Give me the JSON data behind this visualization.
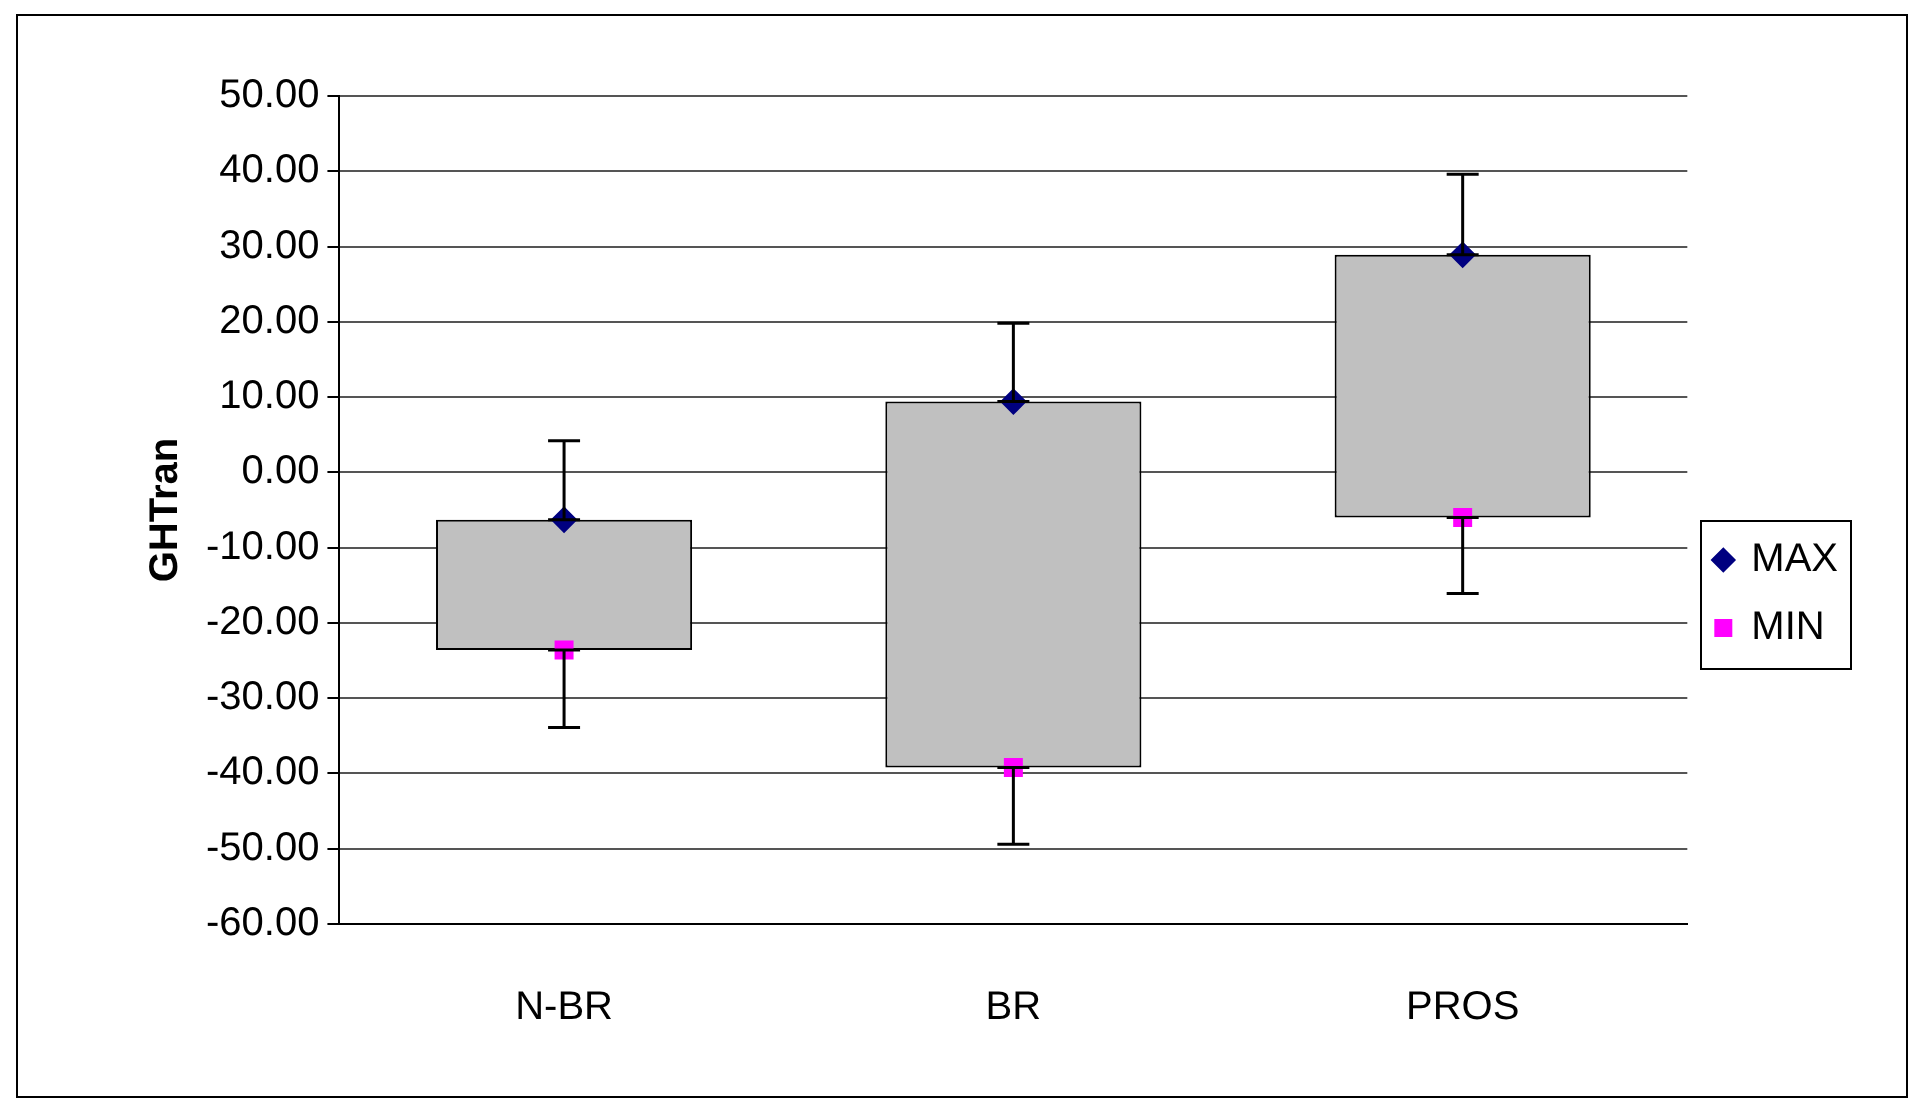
{
  "chart_data": {
    "type": "bar",
    "ylabel": "GHTran",
    "categories": [
      "N-BR",
      "BR",
      "PROS"
    ],
    "series": [
      {
        "color": "#c0c0c0",
        "base": [
          -23.6,
          -39.2,
          -6.0
        ],
        "values": [
          17.3,
          48.6,
          34.9
        ]
      },
      {
        "type": "scatter",
        "name": "MAX",
        "color": "#000080",
        "marker": "diamond",
        "x": [
          "N-BR",
          "BR",
          "PROS"
        ],
        "values": [
          -6.3,
          9.4,
          28.9
        ],
        "errors": [
          [
            -6.3,
            4.2
          ],
          [
            9.4,
            19.8
          ],
          [
            28.9,
            39.6
          ]
        ]
      },
      {
        "type": "scatter",
        "name": "MIN",
        "color": "#ff00ff",
        "marker": "square",
        "x": [
          "N-BR",
          "BR",
          "PROS"
        ],
        "values": [
          -23.6,
          -39.2,
          -6.0
        ],
        "errors": [
          [
            -33.9,
            -23.6
          ],
          [
            -49.4,
            -39.2
          ],
          [
            -16.1,
            -6.0
          ]
        ]
      }
    ],
    "ylim": [
      -60,
      50
    ],
    "yticks": [
      {
        "value": -60,
        "label": "-60.00"
      },
      {
        "value": -50,
        "label": "-50.00"
      },
      {
        "value": -40,
        "label": "-40.00"
      },
      {
        "value": -30,
        "label": "-30.00"
      },
      {
        "value": -20,
        "label": "-20.00"
      },
      {
        "value": -10,
        "label": "-10.00"
      },
      {
        "value": 0,
        "label": "0.00"
      },
      {
        "value": 10,
        "label": "10.00"
      },
      {
        "value": 20,
        "label": "20.00"
      },
      {
        "value": 30,
        "label": "30.00"
      },
      {
        "value": 40,
        "label": "40.00"
      },
      {
        "value": 50,
        "label": "50.00"
      }
    ],
    "grid": "y",
    "legend": "right"
  }
}
